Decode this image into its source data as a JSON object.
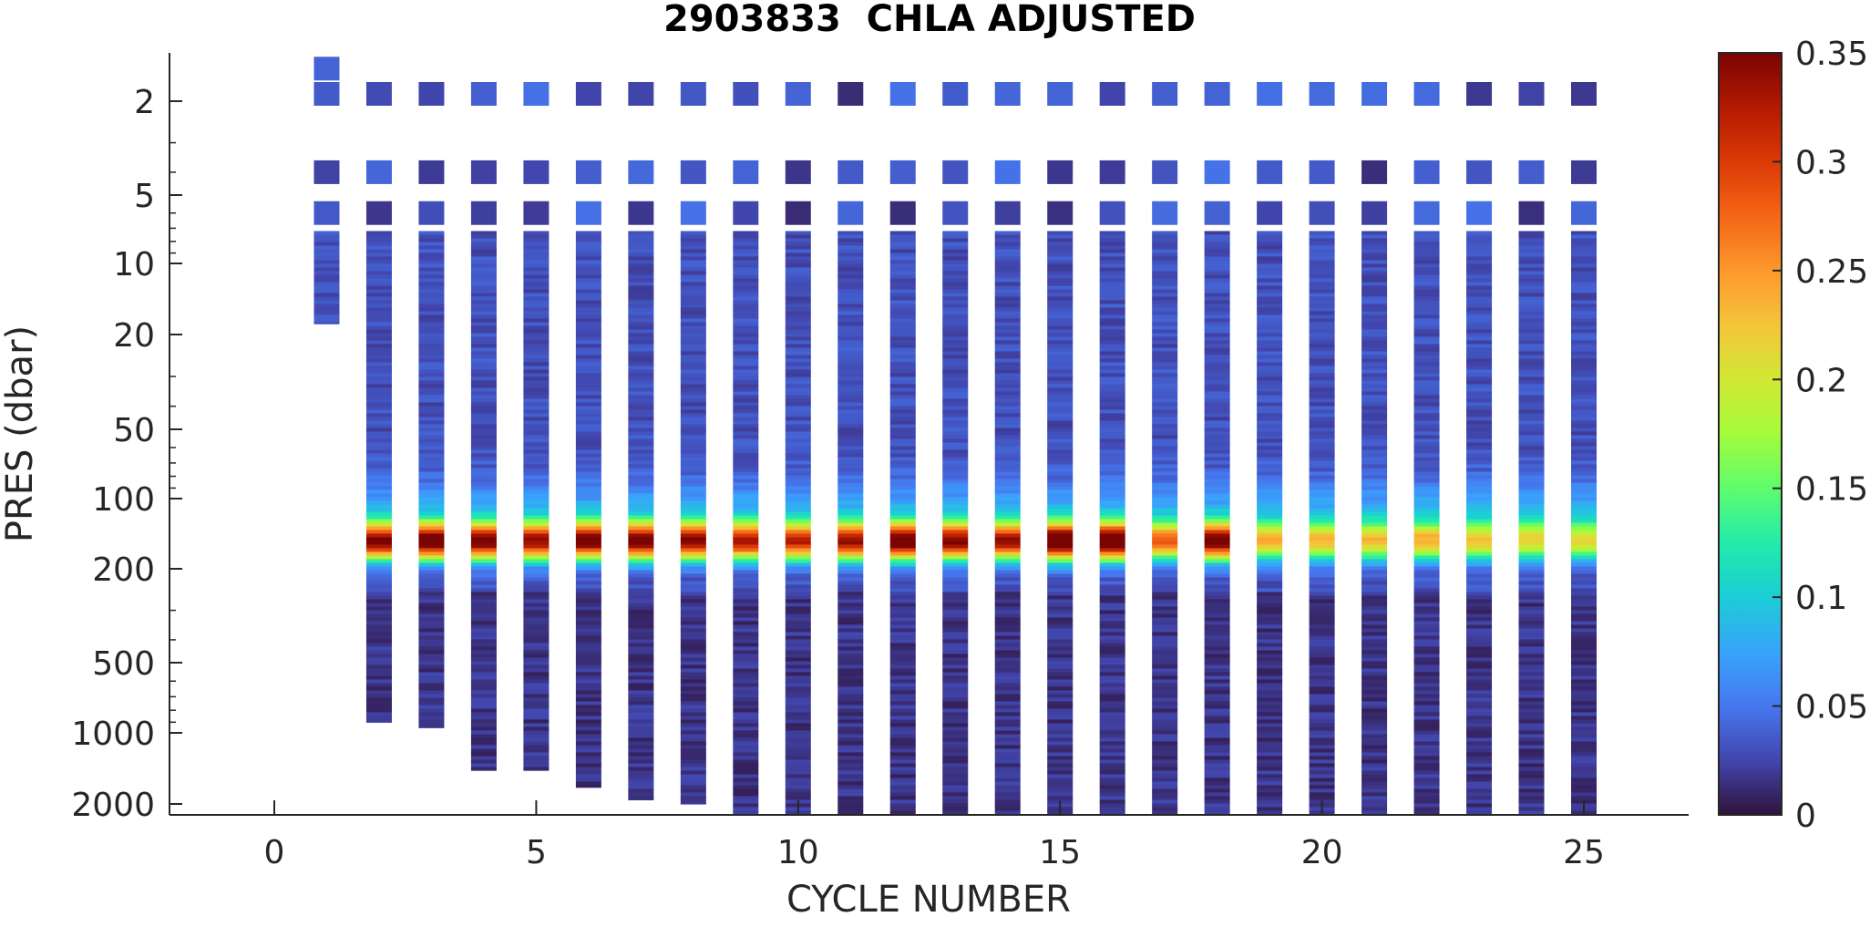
{
  "chart_data": {
    "type": "heatmap",
    "title": "2903833  CHLA ADJUSTED",
    "xlabel": "CYCLE NUMBER",
    "ylabel": "PRES (dbar)",
    "x_ticks": [
      0,
      5,
      10,
      15,
      20,
      25
    ],
    "xlim": [
      -2,
      27
    ],
    "y_scale": "log-like (Argo pressure)",
    "y_ticks": [
      2,
      5,
      10,
      20,
      50,
      100,
      200,
      500,
      1000,
      2000
    ],
    "ylim": [
      1.2,
      2050
    ],
    "y_reversed": true,
    "colorbar": {
      "colormap": "turbo",
      "range": [
        0,
        0.35
      ],
      "ticks": [
        0,
        0.05,
        0.1,
        0.15,
        0.2,
        0.25,
        0.3,
        0.35
      ],
      "tick_labels": [
        "0",
        "0.05",
        "0.1",
        "0.15",
        "0.2",
        "0.25",
        "0.3",
        "0.35"
      ]
    },
    "profile_shape": {
      "surface_samples_dbar": [
        2,
        4,
        6
      ],
      "background_chla": 0.03,
      "dcm_depth_dbar": 150
    },
    "profiles": [
      {
        "cycle": 1,
        "max_pres": 18,
        "top_pres": 1.3,
        "dcm_value": 0.03
      },
      {
        "cycle": 2,
        "max_pres": 900,
        "dcm_value": 0.29
      },
      {
        "cycle": 3,
        "max_pres": 950,
        "dcm_value": 0.31
      },
      {
        "cycle": 4,
        "max_pres": 1440,
        "dcm_value": 0.3
      },
      {
        "cycle": 5,
        "max_pres": 1440,
        "dcm_value": 0.28
      },
      {
        "cycle": 6,
        "max_pres": 1700,
        "dcm_value": 0.3
      },
      {
        "cycle": 7,
        "max_pres": 1920,
        "dcm_value": 0.3
      },
      {
        "cycle": 8,
        "max_pres": 2000,
        "dcm_value": 0.29
      },
      {
        "cycle": 9,
        "max_pres": 2050,
        "dcm_value": 0.27
      },
      {
        "cycle": 10,
        "max_pres": 2050,
        "dcm_value": 0.26
      },
      {
        "cycle": 11,
        "max_pres": 2050,
        "dcm_value": 0.28
      },
      {
        "cycle": 12,
        "max_pres": 2050,
        "dcm_value": 0.32
      },
      {
        "cycle": 13,
        "max_pres": 2050,
        "dcm_value": 0.29
      },
      {
        "cycle": 14,
        "max_pres": 2050,
        "dcm_value": 0.28
      },
      {
        "cycle": 15,
        "max_pres": 2050,
        "dcm_value": 0.34
      },
      {
        "cycle": 16,
        "max_pres": 2050,
        "dcm_value": 0.33
      },
      {
        "cycle": 17,
        "max_pres": 2050,
        "dcm_value": 0.22
      },
      {
        "cycle": 18,
        "max_pres": 2050,
        "dcm_value": 0.3
      },
      {
        "cycle": 19,
        "max_pres": 2050,
        "dcm_value": 0.18
      },
      {
        "cycle": 20,
        "max_pres": 2050,
        "dcm_value": 0.17
      },
      {
        "cycle": 21,
        "max_pres": 2050,
        "dcm_value": 0.17
      },
      {
        "cycle": 22,
        "max_pres": 2050,
        "dcm_value": 0.18
      },
      {
        "cycle": 23,
        "max_pres": 2050,
        "dcm_value": 0.17
      },
      {
        "cycle": 24,
        "max_pres": 2050,
        "dcm_value": 0.16
      },
      {
        "cycle": 25,
        "max_pres": 2050,
        "dcm_value": 0.15
      }
    ]
  }
}
